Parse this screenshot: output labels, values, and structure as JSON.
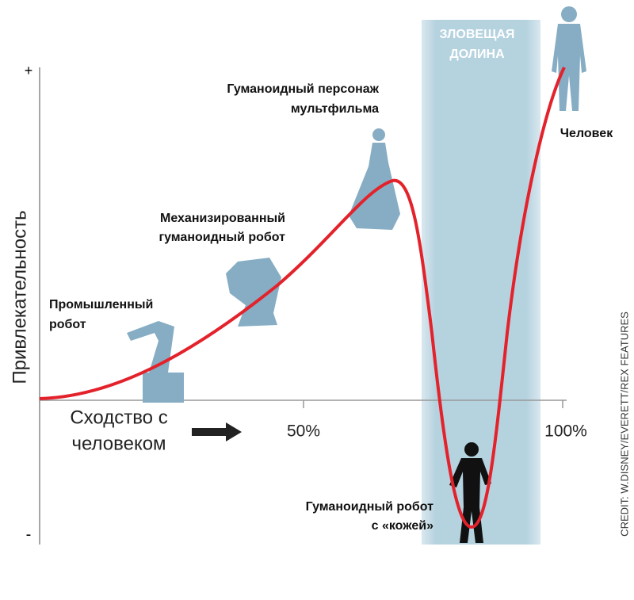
{
  "chart": {
    "y_axis_label": "Привлекательность",
    "y_top": "+",
    "y_bottom": "-",
    "x_axis_label": [
      "Сходство с",
      "человеком"
    ],
    "x_ticks": [
      "50%",
      "100%"
    ],
    "zone": [
      "ЗЛОВЕЩАЯ",
      "ДОЛИНА"
    ],
    "labels": {
      "industrial": [
        "Промышленный",
        "робот"
      ],
      "mechanized": [
        "Механизированный",
        "гуманоидный робот"
      ],
      "cartoon": [
        "Гуманоидный персонаж",
        "мультфильма"
      ],
      "skin": [
        "Гуманоидный робот",
        "с «кожей»"
      ],
      "human": "Человек"
    },
    "credit": "CREDIT: W.DISNEY/EVERETT/REX FEATURES"
  }
}
